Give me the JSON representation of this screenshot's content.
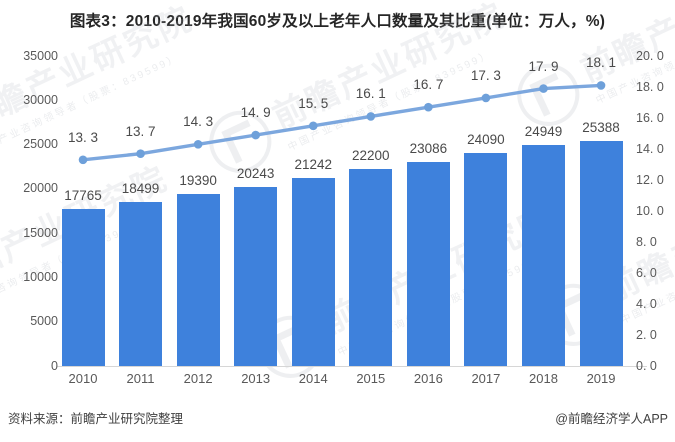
{
  "title": "图表3：2010-2019年我国60岁及以上老年人口数量及其比重(单位：万人，%)",
  "footer": {
    "source_note": "资料来源：前瞻产业研究院整理",
    "credit": "@前瞻经济学人APP"
  },
  "watermark": {
    "brand": "前瞻产业研究院",
    "subtext": "中国产业咨询领导者（股票：839599）",
    "logo_icon": "qianzhan-circle-logo"
  },
  "colors": {
    "bar": "#3e81dc",
    "line": "#7ca7de",
    "marker": "#6ea0da",
    "title_text": "#262626",
    "data_label_text": "#4a4a4a",
    "axis_text": "#595959",
    "baseline": "#d6d6d6",
    "background": "#ffffff",
    "watermark": "#b2b8c0"
  },
  "chart_data": {
    "type": "bar+line",
    "title": "图表3：2010-2019年我国60岁及以上老年人口数量及其比重(单位：万人，%)",
    "categories": [
      "2010",
      "2011",
      "2012",
      "2013",
      "2014",
      "2015",
      "2016",
      "2017",
      "2018",
      "2019"
    ],
    "bar_series": {
      "unit": "万人",
      "axis": "left",
      "values": [
        17765,
        18499,
        19390,
        20243,
        21242,
        22200,
        23086,
        24090,
        24949,
        25388
      ],
      "data_labels": [
        "17765",
        "18499",
        "19390",
        "20243",
        "21242",
        "22200",
        "23086",
        "24090",
        "24949",
        "25388"
      ]
    },
    "line_series": {
      "unit": "%",
      "axis": "right",
      "values": [
        13.3,
        13.7,
        14.3,
        14.9,
        15.5,
        16.1,
        16.7,
        17.3,
        17.9,
        18.1
      ],
      "data_labels": [
        "13. 3",
        "13. 7",
        "14. 3",
        "14. 9",
        "15. 5",
        "16. 1",
        "16. 7",
        "17. 3",
        "17. 9",
        "18. 1"
      ]
    },
    "left_axis": {
      "min": 0,
      "max": 35000,
      "step": 5000,
      "tick_labels": [
        "35000",
        "30000",
        "25000",
        "20000",
        "15000",
        "10000",
        "5000",
        "0"
      ]
    },
    "right_axis": {
      "min": 0,
      "max": 20,
      "step": 2,
      "tick_labels": [
        "20. 0",
        "18. 0",
        "16. 0",
        "14. 0",
        "12. 0",
        "10. 0",
        "8. 0",
        "6. 0",
        "4. 0",
        "2. 0",
        "0. 0"
      ]
    },
    "grid": "off",
    "legend": "none"
  }
}
